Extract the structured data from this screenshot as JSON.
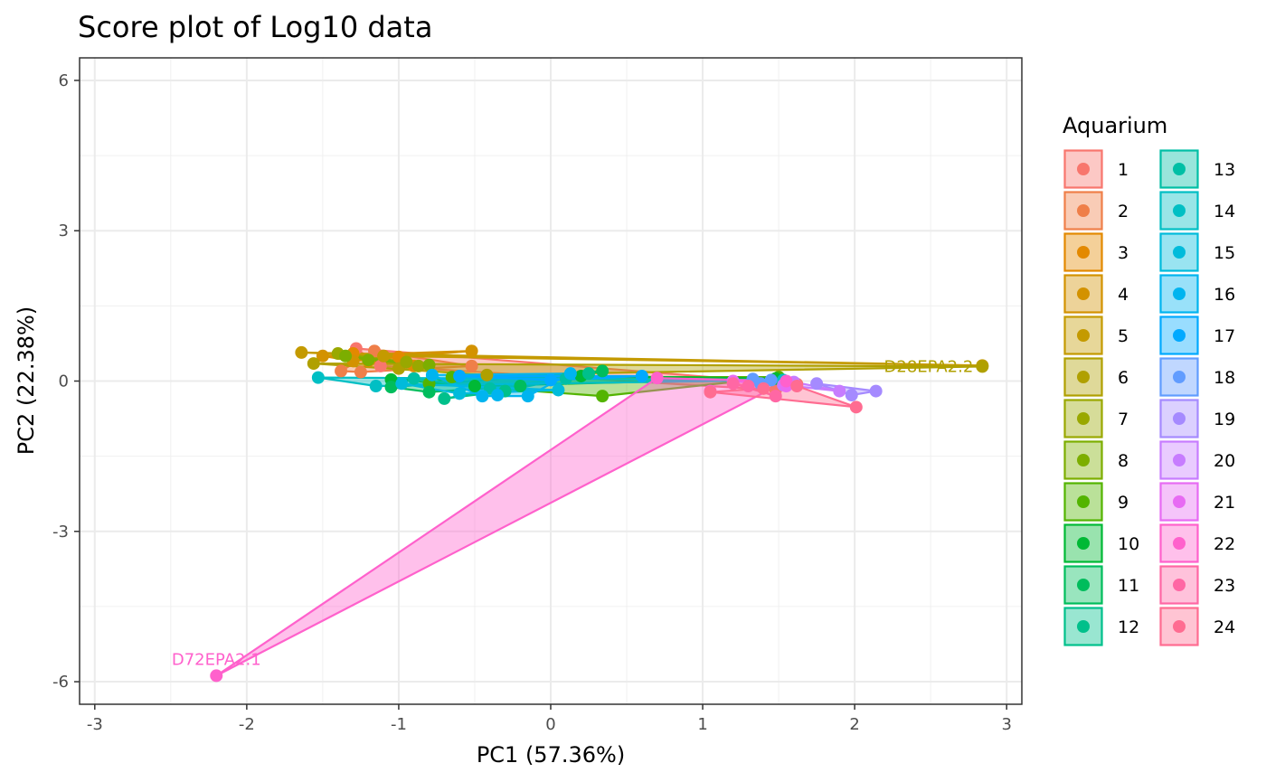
{
  "chart_data": {
    "type": "scatter",
    "title": "Score plot of Log10 data",
    "xlabel": "PC1 (57.36%)",
    "ylabel": "PC2 (22.38%)",
    "xlim": [
      -3.1,
      3.1
    ],
    "ylim": [
      -6.45,
      6.45
    ],
    "x_ticks": [
      -3,
      -2,
      -1,
      0,
      1,
      2,
      3
    ],
    "x_tick_labels": [
      "-3",
      "-2",
      "-1",
      "0",
      "1",
      "2",
      "3"
    ],
    "y_ticks": [
      6,
      3,
      0,
      -3,
      -6
    ],
    "y_tick_labels": [
      "6",
      "3",
      "0",
      "-3",
      "-6"
    ],
    "grid": true,
    "legend": {
      "title": "Aquarium",
      "position": "right",
      "columns": 2,
      "labels": [
        "1",
        "2",
        "3",
        "4",
        "5",
        "6",
        "7",
        "8",
        "9",
        "10",
        "11",
        "12",
        "13",
        "14",
        "15",
        "16",
        "17",
        "18",
        "19",
        "20",
        "21",
        "22",
        "23",
        "24"
      ]
    },
    "colors": [
      "#F8766D",
      "#EF7F49",
      "#E38900",
      "#D39200",
      "#C49A00",
      "#B0A000",
      "#99A800",
      "#7CAE00",
      "#53B400",
      "#00B935",
      "#00BD5C",
      "#00C08B",
      "#00BFA5",
      "#00BFC4",
      "#00BBDB",
      "#00B4EF",
      "#00A9FF",
      "#619CFF",
      "#A58AFF",
      "#C77CFF",
      "#E76BF3",
      "#FF61CC",
      "#FF67A4",
      "#FF6C91"
    ],
    "series": [
      {
        "name": "1",
        "points": [
          [
            -1.28,
            0.65
          ],
          [
            1.62,
            -0.06
          ],
          [
            1.48,
            -0.18
          ],
          [
            -1.12,
            0.3
          ]
        ]
      },
      {
        "name": "2",
        "points": [
          [
            -1.38,
            0.2
          ],
          [
            -1.16,
            0.6
          ],
          [
            -0.52,
            0.3
          ],
          [
            -1.25,
            0.18
          ]
        ]
      },
      {
        "name": "3",
        "points": [
          [
            -1.3,
            0.55
          ],
          [
            -1.0,
            0.48
          ],
          [
            -0.9,
            0.3
          ],
          [
            -1.2,
            0.4
          ]
        ]
      },
      {
        "name": "4",
        "points": [
          [
            -1.5,
            0.5
          ],
          [
            -0.52,
            0.6
          ],
          [
            -1.3,
            0.4
          ]
        ]
      },
      {
        "name": "5",
        "points": [
          [
            -1.64,
            0.57
          ],
          [
            2.84,
            0.31
          ],
          [
            -1.1,
            0.5
          ]
        ]
      },
      {
        "name": "6",
        "points": [
          [
            -1.56,
            0.35
          ],
          [
            2.84,
            0.29
          ],
          [
            -0.42,
            0.12
          ],
          [
            -1.0,
            0.25
          ]
        ],
        "label": "D28EPA2.2",
        "label_index": 1
      },
      {
        "name": "7",
        "points": [
          [
            -1.4,
            0.55
          ],
          [
            -0.87,
            0.3
          ],
          [
            -0.95,
            0.38
          ]
        ]
      },
      {
        "name": "8",
        "points": [
          [
            -1.35,
            0.5
          ],
          [
            -0.8,
            0.32
          ],
          [
            -1.2,
            0.42
          ]
        ]
      },
      {
        "name": "9",
        "points": [
          [
            -0.65,
            0.08
          ],
          [
            1.5,
            0.08
          ],
          [
            0.34,
            -0.3
          ],
          [
            -0.8,
            -0.05
          ]
        ]
      },
      {
        "name": "10",
        "points": [
          [
            -1.05,
            0.03
          ],
          [
            0.2,
            0.1
          ],
          [
            1.48,
            0.05
          ],
          [
            -0.5,
            -0.1
          ]
        ]
      },
      {
        "name": "11",
        "points": [
          [
            -1.05,
            -0.12
          ],
          [
            -0.8,
            -0.22
          ],
          [
            0.34,
            0.2
          ],
          [
            -0.2,
            -0.1
          ]
        ]
      },
      {
        "name": "12",
        "points": [
          [
            -0.7,
            -0.35
          ],
          [
            0.25,
            0.15
          ],
          [
            -0.3,
            -0.2
          ]
        ]
      },
      {
        "name": "13",
        "points": [
          [
            -0.9,
            0.05
          ],
          [
            0.1,
            0.05
          ],
          [
            -0.4,
            -0.15
          ]
        ]
      },
      {
        "name": "14",
        "points": [
          [
            -1.53,
            0.07
          ],
          [
            1.53,
            0.02
          ],
          [
            -1.15,
            -0.1
          ]
        ]
      },
      {
        "name": "15",
        "points": [
          [
            -0.98,
            -0.05
          ],
          [
            0.05,
            -0.18
          ],
          [
            -0.6,
            -0.25
          ]
        ]
      },
      {
        "name": "16",
        "points": [
          [
            -0.78,
            0.12
          ],
          [
            0.13,
            0.15
          ],
          [
            -0.15,
            -0.3
          ],
          [
            -0.35,
            -0.28
          ],
          [
            -0.45,
            -0.3
          ]
        ]
      },
      {
        "name": "17",
        "points": [
          [
            -0.6,
            0.1
          ],
          [
            0.6,
            0.1
          ],
          [
            0.0,
            0.02
          ]
        ]
      },
      {
        "name": "18",
        "points": [
          [
            1.33,
            0.04
          ],
          [
            1.45,
            0.02
          ],
          [
            1.38,
            -0.05
          ]
        ]
      },
      {
        "name": "19",
        "points": [
          [
            1.98,
            -0.28
          ],
          [
            2.14,
            -0.2
          ],
          [
            1.75,
            -0.05
          ]
        ]
      },
      {
        "name": "20",
        "points": [
          [
            1.53,
            -0.08
          ],
          [
            1.9,
            -0.2
          ],
          [
            1.6,
            -0.02
          ]
        ]
      },
      {
        "name": "21",
        "points": [
          [
            1.2,
            0.0
          ],
          [
            1.55,
            -0.1
          ]
        ]
      },
      {
        "name": "22",
        "points": [
          [
            -2.2,
            -5.88
          ],
          [
            0.7,
            0.06
          ],
          [
            1.05,
            -0.2
          ],
          [
            1.55,
            0.0
          ]
        ],
        "label": "D72EPA2.1",
        "label_index": 0
      },
      {
        "name": "23",
        "points": [
          [
            1.2,
            -0.05
          ],
          [
            1.48,
            -0.3
          ],
          [
            1.3,
            -0.1
          ]
        ]
      },
      {
        "name": "24",
        "points": [
          [
            1.62,
            -0.1
          ],
          [
            2.01,
            -0.52
          ],
          [
            1.05,
            -0.22
          ],
          [
            1.4,
            -0.15
          ]
        ]
      }
    ]
  }
}
